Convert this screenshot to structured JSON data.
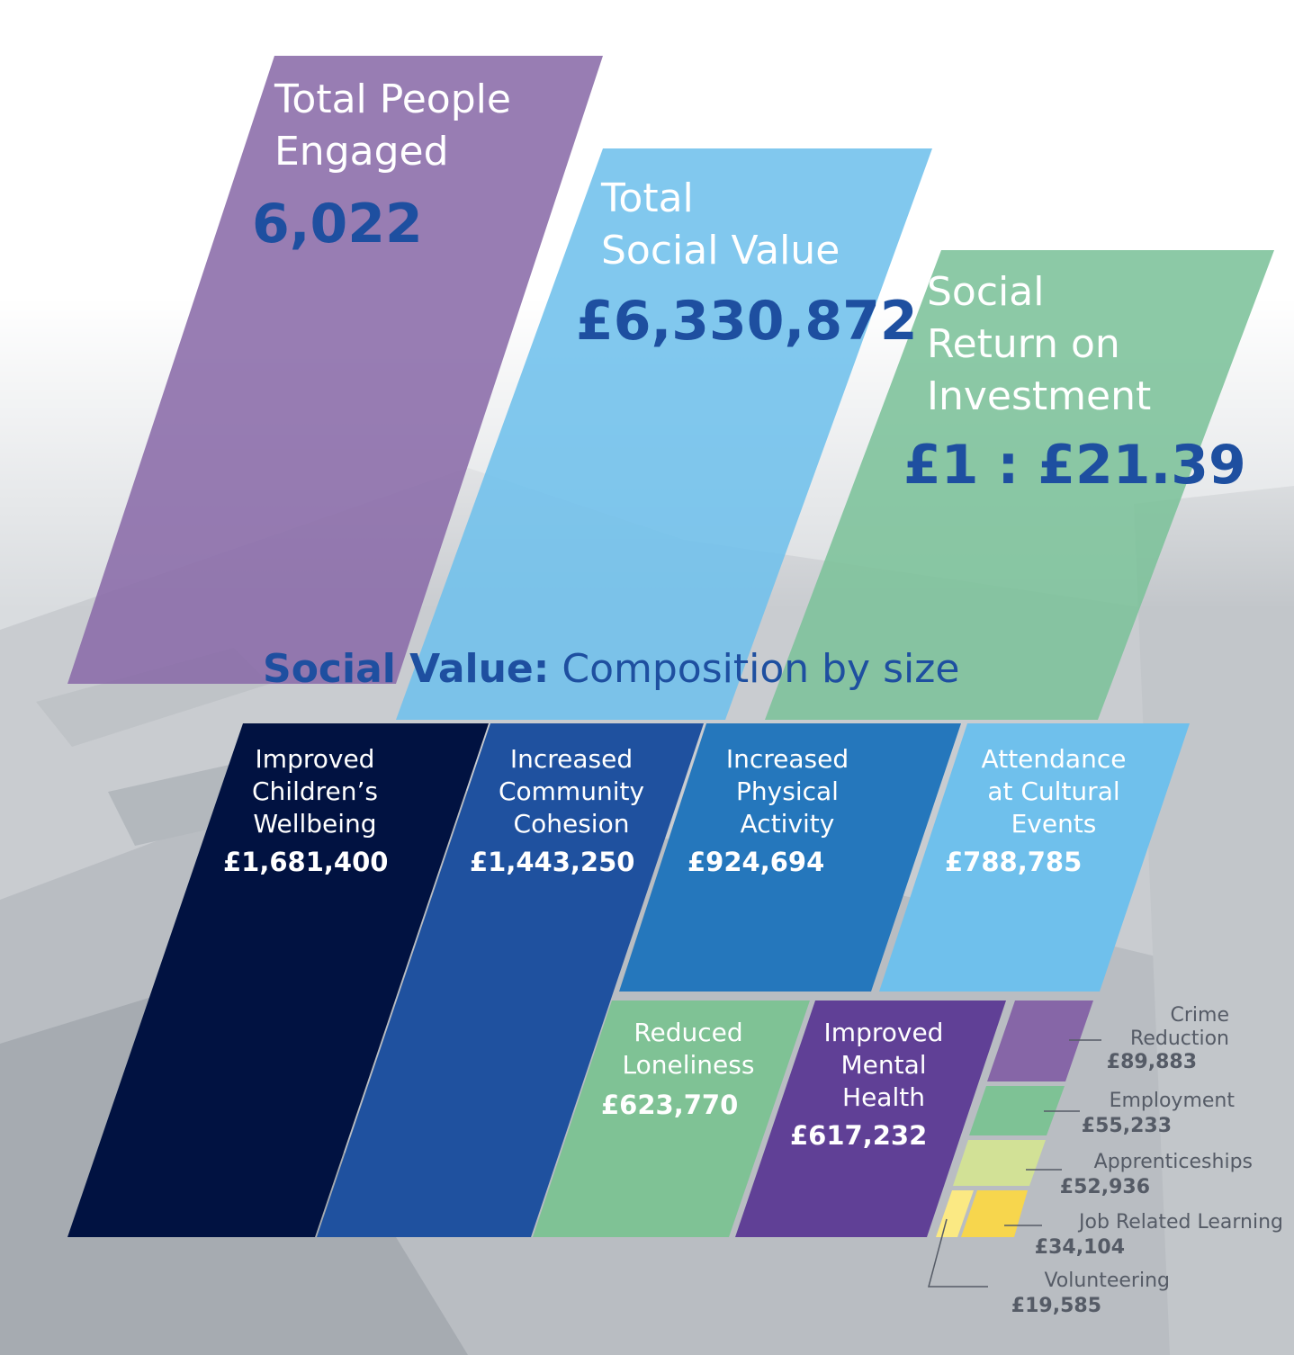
{
  "kpis": [
    {
      "label": "Total People\nEngaged",
      "value": "6,022",
      "color": "#8a6ba8"
    },
    {
      "label": "Total\nSocial Value",
      "value": "£6,330,872",
      "color": "#6fc0ec"
    },
    {
      "label": "Social\nReturn on\nInvestment",
      "value": "£1 : £21.39",
      "color": "#7cc19a"
    }
  ],
  "composition": {
    "title_bold": "Social Value:",
    "title_rest": "Composition by size"
  },
  "chart_data": {
    "type": "treemap",
    "title": "Social Value: Composition by size",
    "categories": [
      "Improved Children’s Wellbeing",
      "Increased Community Cohesion",
      "Increased Physical Activity",
      "Attendance at Cultural Events",
      "Reduced Loneliness",
      "Improved Mental Health",
      "Crime Reduction",
      "Employment",
      "Apprenticeships",
      "Job Related Learning",
      "Volunteering"
    ],
    "values": [
      1681400,
      1443250,
      924694,
      788785,
      623770,
      617232,
      89883,
      55233,
      52936,
      34104,
      19585
    ],
    "labels": [
      {
        "label": "Improved\nChildren’s\nWellbeing",
        "value": "£1,681,400",
        "color": "#011241"
      },
      {
        "label": "Increased\nCommunity\nCohesion",
        "value": "£1,443,250",
        "color": "#1f519f"
      },
      {
        "label": "Increased\nPhysical\nActivity",
        "value": "£924,694",
        "color": "#2577bc"
      },
      {
        "label": "Attendance\nat Cultural\nEvents",
        "value": "£788,785",
        "color": "#6fc0ec"
      },
      {
        "label": "Reduced\nLoneliness",
        "value": "£623,770",
        "color": "#7fc295"
      },
      {
        "label": "Improved\nMental\nHealth",
        "value": "£617,232",
        "color": "#604096"
      },
      {
        "label": "Crime\nReduction",
        "value": "£89,883",
        "color": "#8666a7"
      },
      {
        "label": "Employment",
        "value": "£55,233",
        "color": "#7ec295"
      },
      {
        "label": "Apprenticeships",
        "value": "£52,936",
        "color": "#d2e196"
      },
      {
        "label": "Job Related Learning",
        "value": "£34,104",
        "color": "#f7d64d"
      },
      {
        "label": "Volunteering",
        "value": "£19,585",
        "color": "#fbe983"
      }
    ]
  }
}
